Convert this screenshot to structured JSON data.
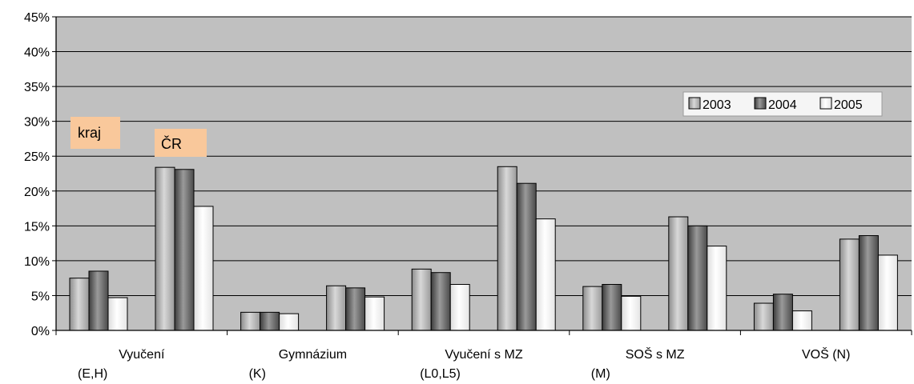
{
  "chart_data": {
    "type": "bar",
    "categories": [
      {
        "line1": "Vyučení",
        "line2": "(E,H)"
      },
      {
        "line1": "Gymnázium",
        "line2": "(K)"
      },
      {
        "line1": "Vyučení s MZ",
        "line2": "(L0,L5)"
      },
      {
        "line1": "SOŠ s MZ",
        "line2": "(M)"
      },
      {
        "line1": "VOŠ (N)",
        "line2": ""
      }
    ],
    "groups": [
      "kraj",
      "ČR"
    ],
    "series": [
      {
        "name": "2003",
        "color": "#a9a9a9",
        "kraj": [
          7.5,
          2.6,
          8.8,
          6.3,
          3.9
        ],
        "CR": [
          23.4,
          6.4,
          23.5,
          16.3,
          13.1
        ]
      },
      {
        "name": "2004",
        "color": "#7a7a7a",
        "kraj": [
          8.5,
          2.6,
          8.3,
          6.6,
          5.2
        ],
        "CR": [
          23.1,
          6.1,
          21.1,
          15.0,
          13.6
        ]
      },
      {
        "name": "2005",
        "color": "#f2f2f2",
        "kraj": [
          4.7,
          2.4,
          6.6,
          4.9,
          2.8
        ],
        "CR": [
          17.8,
          4.8,
          16.0,
          12.1,
          10.8
        ]
      }
    ],
    "y_ticks": [
      "0%",
      "5%",
      "10%",
      "15%",
      "20%",
      "25%",
      "30%",
      "35%",
      "40%",
      "45%"
    ],
    "ylim": [
      0,
      45
    ],
    "grid": true,
    "legend_position": "top-right",
    "colors": {
      "plot_bg": "#c0c0c0",
      "legend_bg": "#f5f5f5",
      "note_bg": "#f9c89b"
    }
  }
}
